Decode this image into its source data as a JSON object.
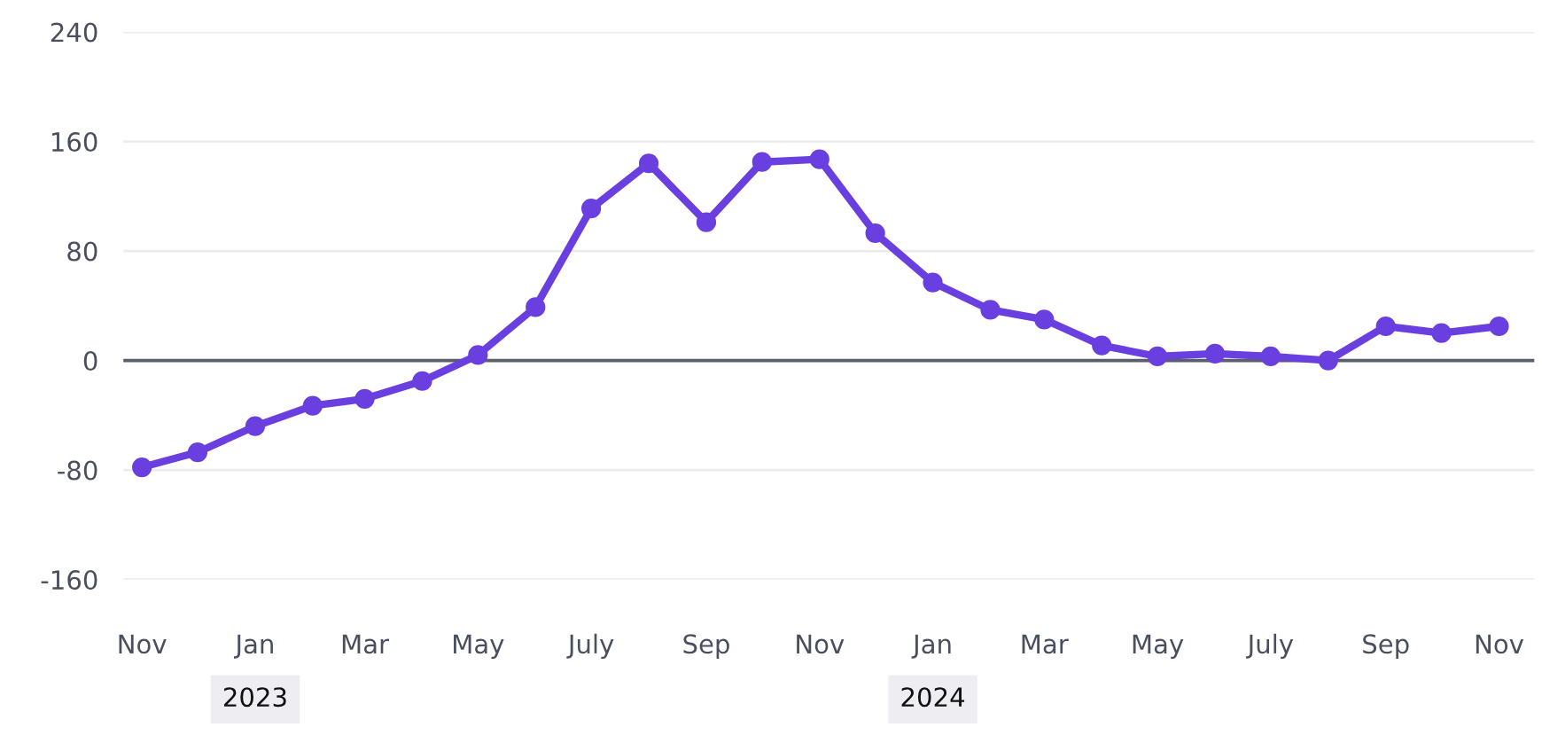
{
  "chart_data": {
    "type": "line",
    "x": [
      "2022-11",
      "2022-12",
      "2023-01",
      "2023-02",
      "2023-03",
      "2023-04",
      "2023-05",
      "2023-06",
      "2023-07",
      "2023-08",
      "2023-09",
      "2023-10",
      "2023-11",
      "2023-12",
      "2024-01",
      "2024-02",
      "2024-03",
      "2024-04",
      "2024-05",
      "2024-06",
      "2024-07",
      "2024-08",
      "2024-09",
      "2024-10",
      "2024-11"
    ],
    "series": [
      {
        "color": "#6a3fe0",
        "values": [
          -78,
          -67,
          -48,
          -33,
          -28,
          -15,
          4,
          39,
          111,
          144,
          101,
          145,
          147,
          93,
          57,
          37,
          30,
          11,
          3,
          5,
          3,
          0,
          25,
          20,
          25
        ]
      }
    ],
    "xlim": [
      "2022-10-22",
      "2024-11-20"
    ],
    "xticks": [
      {
        "value": "2022-11",
        "label": "Nov"
      },
      {
        "value": "2023-01",
        "label": "Jan"
      },
      {
        "value": "2023-03",
        "label": "Mar"
      },
      {
        "value": "2023-05",
        "label": "May"
      },
      {
        "value": "2023-07",
        "label": "July"
      },
      {
        "value": "2023-09",
        "label": "Sep"
      },
      {
        "value": "2023-11",
        "label": "Nov"
      },
      {
        "value": "2024-01",
        "label": "Jan"
      },
      {
        "value": "2024-03",
        "label": "Mar"
      },
      {
        "value": "2024-05",
        "label": "May"
      },
      {
        "value": "2024-07",
        "label": "July"
      },
      {
        "value": "2024-09",
        "label": "Sep"
      },
      {
        "value": "2024-11",
        "label": "Nov"
      }
    ],
    "x2ticks": [
      {
        "value": "2023-01",
        "label": "2023"
      },
      {
        "value": "2024-01",
        "label": "2024"
      }
    ],
    "x2lim": [
      "2022-10-22",
      "2024-11-20"
    ],
    "ylim": [
      -160,
      240
    ],
    "yticks": [
      -160,
      -80,
      0,
      80,
      160,
      240
    ],
    "grid": "y",
    "ref_lines": [
      {
        "axis": "y",
        "value": 0,
        "color": "#5a5f6e"
      }
    ],
    "marker": "circle",
    "line_style": "solid",
    "legend": false
  }
}
